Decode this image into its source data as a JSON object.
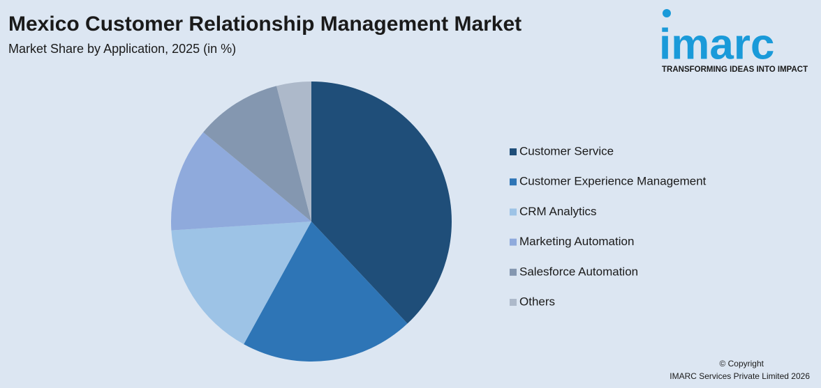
{
  "chart_data": {
    "type": "pie",
    "title": "Mexico Customer Relationship Management Market",
    "subtitle": "Market Share by Application, 2025 (in %)",
    "categories": [
      "Customer Service",
      "Customer Experience Management",
      "CRM Analytics",
      "Marketing Automation",
      "Salesforce Automation",
      "Others"
    ],
    "values": [
      38,
      20,
      16,
      12,
      10,
      4
    ],
    "colors": [
      "#1f4e79",
      "#2e75b6",
      "#9dc3e6",
      "#8faadc",
      "#8497b0",
      "#adb9ca"
    ],
    "legend": "right"
  },
  "logo": {
    "name": "imarc",
    "tagline": "TRANSFORMING IDEAS INTO IMPACT"
  },
  "footer": {
    "copyright": "© Copyright",
    "company": "IMARC Services Private Limited 2026"
  }
}
